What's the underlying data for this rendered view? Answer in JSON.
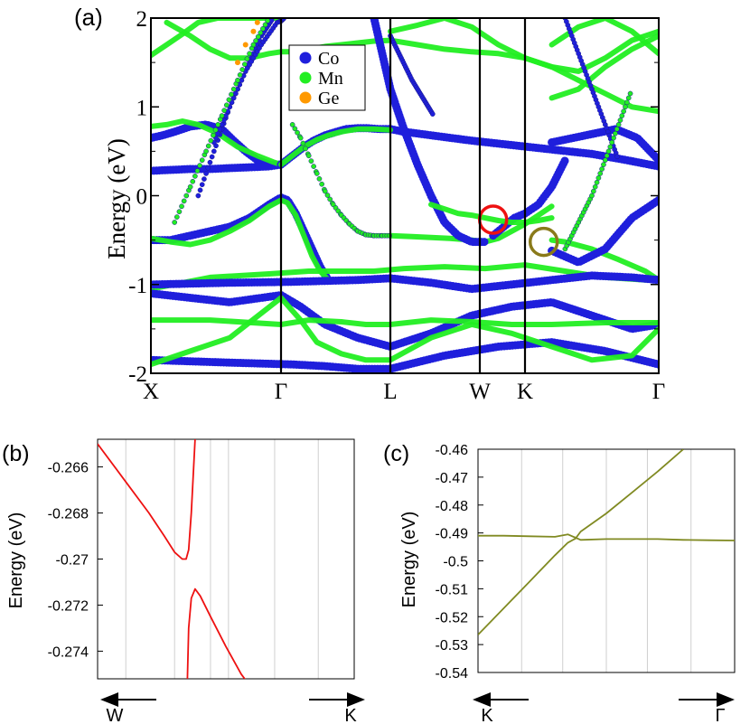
{
  "chart_data": [
    {
      "panel": "(a)",
      "type": "line",
      "ylabel": "Energy (eV)",
      "ylim": [
        -2,
        2
      ],
      "yticks": [
        "-2",
        "-1",
        "0",
        "1",
        "2"
      ],
      "xticks": [
        "X",
        "Γ",
        "L",
        "W",
        "K",
        "Γ"
      ],
      "legend_position": "top-center",
      "legend": [
        {
          "name": "Co",
          "color": "#1f1fdc"
        },
        {
          "name": "Mn",
          "color": "#22ee22"
        },
        {
          "name": "Ge",
          "color": "#ff9900"
        }
      ],
      "series": [
        {
          "color": "#1f1fdc",
          "x": [
            0,
            0.03,
            0.06,
            0.1,
            0.14,
            0.18,
            0.21,
            0.24,
            0.27,
            0.3,
            0.33
          ],
          "y": [
            0.65,
            0.68,
            0.72,
            0.78,
            0.8,
            0.75,
            0.62,
            0.5,
            0.4,
            0.35,
            0.35
          ]
        },
        {
          "color": "#1f1fdc",
          "x": [
            0,
            0.05,
            0.1,
            0.15,
            0.2,
            0.25,
            0.3,
            0.33
          ],
          "y": [
            0.28,
            0.29,
            0.3,
            0.3,
            0.31,
            0.32,
            0.33,
            0.35
          ]
        },
        {
          "color": "#22ee22",
          "x": [
            0,
            0.04,
            0.08,
            0.12,
            0.17,
            0.22,
            0.27,
            0.31,
            0.33
          ],
          "y": [
            0.78,
            0.8,
            0.84,
            0.8,
            0.7,
            0.55,
            0.45,
            0.38,
            0.35
          ]
        },
        {
          "color": "#1f1fdc",
          "x": [
            0.33,
            0.4,
            0.47,
            0.53,
            0.6,
            0.67,
            0.73,
            0.8,
            0.86,
            0.93,
            1.0,
            1.05,
            1.1,
            1.15,
            1.2,
            1.3,
            1.45,
            1.6,
            1.75,
            1.88,
            2.0
          ],
          "y": [
            0.35,
            0.45,
            0.55,
            0.62,
            0.68,
            0.72,
            0.75,
            0.76,
            0.76,
            0.75,
            0.75,
            0.72,
            0.7,
            0.68,
            0.66,
            0.62,
            0.57,
            0.52,
            0.47,
            0.4,
            0.33
          ]
        },
        {
          "color": "#22ee22",
          "x": [
            0.33,
            0.4,
            0.47,
            0.55,
            0.62,
            0.7,
            0.8,
            0.9,
            1.0
          ],
          "y": [
            0.35,
            0.45,
            0.55,
            0.63,
            0.68,
            0.72,
            0.75,
            0.75,
            0.74
          ]
        },
        {
          "color": "#1f1fdc",
          "x": [
            0,
            0.05,
            0.1,
            0.15,
            0.2,
            0.25,
            0.3,
            0.33,
            0.37,
            0.42,
            0.47,
            0.52,
            0.57,
            0.62
          ],
          "y": [
            -0.5,
            -0.5,
            -0.45,
            -0.4,
            -0.35,
            -0.25,
            -0.1,
            -0.02,
            -0.05,
            -0.2,
            -0.4,
            -0.6,
            -0.8,
            -0.95
          ]
        },
        {
          "color": "#22ee22",
          "x": [
            0,
            0.05,
            0.1,
            0.15,
            0.2,
            0.25,
            0.3,
            0.33,
            0.37,
            0.42,
            0.47,
            0.52,
            0.57,
            0.62
          ],
          "y": [
            -0.48,
            -0.52,
            -0.55,
            -0.5,
            -0.4,
            -0.28,
            -0.12,
            -0.05,
            -0.08,
            -0.22,
            -0.45,
            -0.68,
            -0.85,
            -0.95
          ]
        },
        {
          "color": "#22ee22",
          "x": [
            1.0,
            1.08,
            1.15,
            1.22,
            1.3,
            1.35,
            1.4,
            1.45,
            1.5,
            1.55,
            1.6
          ],
          "y": [
            -0.45,
            -0.46,
            -0.47,
            -0.48,
            -0.5,
            -0.52,
            -0.48,
            -0.4,
            -0.32,
            -0.22,
            -0.12
          ]
        },
        {
          "color": "#22ee22",
          "x": [
            1.6,
            1.65,
            1.75,
            1.85,
            1.95,
            2.0
          ],
          "y": [
            -0.5,
            -0.52,
            -0.6,
            -0.72,
            -0.85,
            -0.95
          ]
        },
        {
          "color": "#1f1fdc",
          "x": [
            1.6,
            1.7,
            1.8,
            1.9,
            2.0
          ],
          "y": [
            -0.62,
            -0.75,
            -0.6,
            -0.25,
            -0.05
          ]
        },
        {
          "color": "#22ee22",
          "x": [
            0,
            0.15,
            0.3,
            0.5,
            0.7,
            0.9,
            1.05,
            1.2,
            1.35,
            1.5,
            1.65,
            1.8,
            1.95,
            2.0
          ],
          "y": [
            -1.05,
            -0.92,
            -0.88,
            -0.85,
            -0.85,
            -0.85,
            -0.82,
            -0.8,
            -0.82,
            -0.78,
            -0.85,
            -0.92,
            -0.95,
            -0.95
          ]
        },
        {
          "color": "#1f1fdc",
          "x": [
            0,
            0.2,
            0.4,
            0.6,
            0.8,
            1.0,
            1.15,
            1.3,
            1.45,
            1.6,
            1.75,
            1.9,
            2.0
          ],
          "y": [
            -1.0,
            -0.98,
            -0.97,
            -0.96,
            -0.95,
            -0.93,
            -0.98,
            -1.05,
            -1.0,
            -0.95,
            -0.9,
            -0.92,
            -0.95
          ]
        },
        {
          "color": "#1f1fdc",
          "x": [
            0,
            0.1,
            0.2,
            0.33,
            0.45,
            0.6,
            0.8,
            1.0,
            1.15,
            1.3,
            1.45,
            1.6,
            1.75,
            1.9,
            2.0
          ],
          "y": [
            -1.1,
            -1.15,
            -1.2,
            -1.12,
            -1.25,
            -1.45,
            -1.6,
            -1.7,
            -1.55,
            -1.35,
            -1.25,
            -1.2,
            -1.35,
            -1.5,
            -1.45
          ]
        },
        {
          "color": "#22ee22",
          "x": [
            0,
            0.15,
            0.33,
            0.5,
            0.7,
            0.85,
            1.0,
            1.15,
            1.3,
            1.45,
            1.6,
            1.8,
            2.0
          ],
          "y": [
            -1.4,
            -1.4,
            -1.45,
            -1.4,
            -1.42,
            -1.45,
            -1.45,
            -1.4,
            -1.42,
            -1.45,
            -1.45,
            -1.43,
            -1.43
          ]
        },
        {
          "color": "#1f1fdc",
          "x": [
            0,
            0.2,
            0.4,
            0.6,
            0.8,
            1.0,
            1.2,
            1.4,
            1.6,
            1.8,
            2.0
          ],
          "y": [
            -1.85,
            -1.88,
            -1.9,
            -1.92,
            -1.95,
            -1.95,
            -1.8,
            -1.7,
            -1.65,
            -1.75,
            -1.9
          ]
        },
        {
          "color": "#22ee22",
          "x": [
            0,
            0.1,
            0.2,
            0.33,
            0.45,
            0.55,
            0.7,
            0.85,
            1.0,
            1.15,
            1.3,
            1.45,
            1.6,
            1.75,
            1.9,
            2.0
          ],
          "y": [
            -1.9,
            -1.75,
            -1.6,
            -1.15,
            -1.4,
            -1.65,
            -1.78,
            -1.85,
            -1.85,
            -1.6,
            -1.45,
            -1.55,
            -1.7,
            -1.85,
            -1.8,
            -1.5
          ]
        },
        {
          "color": "#22ee22",
          "x": [
            0.04,
            0.1,
            0.15,
            0.2,
            0.25,
            0.3,
            0.33,
            0.4,
            0.5,
            0.6,
            0.7,
            0.8,
            0.9,
            1.0,
            1.1,
            1.2,
            1.3,
            1.4,
            1.5,
            1.6,
            1.7,
            1.8,
            1.9,
            2.0
          ],
          "y": [
            1.95,
            1.8,
            1.65,
            1.55,
            1.55,
            1.6,
            1.62,
            1.62,
            1.65,
            1.68,
            1.7,
            1.72,
            1.74,
            1.75,
            1.7,
            1.65,
            1.62,
            1.6,
            1.55,
            1.45,
            1.4,
            1.55,
            1.75,
            1.85
          ]
        },
        {
          "color": "#22ee22",
          "x": [
            0,
            0.04,
            0.08,
            0.12,
            0.17,
            0.22,
            0.27,
            0.31,
            0.33
          ],
          "y": [
            1.58,
            1.7,
            1.82,
            1.95,
            2.0,
            2.0,
            2.0,
            2.0,
            2.0
          ]
        },
        {
          "color": "#22ee22",
          "x": [
            1.0,
            1.1,
            1.2,
            1.3,
            1.4,
            1.5,
            1.6,
            1.7,
            1.8,
            1.9,
            2.0
          ],
          "y": [
            1.85,
            1.92,
            2.0,
            1.9,
            1.7,
            1.55,
            1.45,
            1.3,
            1.15,
            1.0,
            0.95
          ]
        },
        {
          "color": "#1f1fdc",
          "x": [
            0.9,
            0.95,
            1.0,
            1.05,
            1.1,
            1.15,
            1.2,
            1.25,
            1.3,
            1.35
          ],
          "y": [
            2.0,
            1.6,
            1.2,
            0.75,
            0.35,
            0.0,
            -0.3,
            -0.45,
            -0.52,
            -0.52
          ]
        },
        {
          "color": "#1f1fdc",
          "x": [
            1.38,
            1.42,
            1.46,
            1.5,
            1.55,
            1.6,
            1.65
          ],
          "y": [
            -0.45,
            -0.35,
            -0.25,
            -0.2,
            -0.1,
            0.1,
            0.4
          ]
        },
        {
          "color": "#1f1fdc",
          "x": [
            1.6,
            1.68,
            1.76,
            1.84,
            1.92,
            2.0
          ],
          "y": [
            0.6,
            0.65,
            0.7,
            0.75,
            0.65,
            0.4
          ]
        },
        {
          "color": "#22ee22",
          "x": [
            1.15,
            1.2,
            1.25,
            1.3,
            1.35,
            1.4,
            1.45,
            1.5,
            1.55,
            1.6
          ],
          "y": [
            -0.1,
            -0.15,
            -0.2,
            -0.22,
            -0.25,
            -0.28,
            -0.3,
            -0.3,
            -0.28,
            -0.25
          ]
        },
        {
          "color": "#22ee22",
          "x": [
            1.6,
            1.7,
            1.8,
            1.9,
            2.0
          ],
          "y": [
            1.1,
            1.2,
            1.45,
            1.65,
            1.8
          ]
        },
        {
          "color": "#22ee22",
          "x": [
            1.6,
            1.7,
            1.8,
            1.9,
            2.0
          ],
          "y": [
            1.7,
            1.9,
            2.0,
            1.85,
            1.6
          ]
        }
      ],
      "dotted_bands": [
        {
          "color": "#1f1fdc",
          "x": [
            0.12,
            0.16,
            0.2,
            0.24,
            0.28,
            0.31
          ],
          "y": [
            0.0,
            0.5,
            1.0,
            1.4,
            1.8,
            2.0
          ]
        },
        {
          "color": "#1f1fdc",
          "x": [
            0.16,
            0.2,
            0.24,
            0.28,
            0.32,
            0.35
          ],
          "y": [
            0.6,
            1.0,
            1.4,
            1.7,
            1.95,
            2.0
          ]
        },
        {
          "color": "#22ee22",
          "x": [
            0.06,
            0.1,
            0.14,
            0.18,
            0.22,
            0.26,
            0.3
          ],
          "y": [
            -0.3,
            0.1,
            0.5,
            0.9,
            1.3,
            1.7,
            2.0
          ]
        },
        {
          "color": "#22ee22",
          "x": [
            0.4,
            0.45,
            0.5,
            0.55,
            0.6,
            0.65,
            0.7,
            0.75,
            0.8,
            0.85,
            0.9,
            0.95,
            1.0
          ],
          "y": [
            0.8,
            0.65,
            0.45,
            0.25,
            0.05,
            -0.1,
            -0.22,
            -0.32,
            -0.4,
            -0.44,
            -0.45,
            -0.45,
            -0.45
          ]
        },
        {
          "color": "#1f1fdc",
          "x": [
            1.0,
            1.04,
            1.08,
            1.12,
            1.16
          ],
          "y": [
            1.8,
            1.55,
            1.3,
            1.1,
            0.9
          ]
        },
        {
          "color": "#1f1fdc",
          "x": [
            1.65,
            1.7,
            1.75,
            1.8,
            1.85
          ],
          "y": [
            2.0,
            1.6,
            1.2,
            0.8,
            0.4
          ]
        },
        {
          "color": "#22ee22",
          "x": [
            1.65,
            1.7,
            1.75,
            1.8,
            1.85,
            1.9
          ],
          "y": [
            -0.6,
            -0.3,
            0.0,
            0.4,
            0.8,
            1.2
          ]
        }
      ],
      "ge_points": {
        "color": "#ff9900",
        "x": [
          0.22,
          0.24,
          0.26,
          0.27
        ],
        "y": [
          1.5,
          1.7,
          1.85,
          1.95
        ]
      },
      "markers": [
        {
          "name": "red-crossing-circle",
          "color": "#ee1111",
          "x": 1.38,
          "y": -0.27
        },
        {
          "name": "olive-crossing-circle",
          "color": "#8a7a1a",
          "x": 1.57,
          "y": -0.52
        }
      ]
    },
    {
      "panel": "(b)",
      "type": "line",
      "ylabel": "Energy (eV)",
      "ylim": [
        -0.2752,
        -0.2648
      ],
      "yticks": [
        "-0.266",
        "-0.268",
        "-0.27",
        "-0.272",
        "-0.274"
      ],
      "xlim": [
        0,
        1
      ],
      "xlabel_left": "W",
      "xlabel_right": "K",
      "color": "#ee1111",
      "series": [
        {
          "x": [
            0.0,
            0.1,
            0.2,
            0.26,
            0.3,
            0.33,
            0.345,
            0.355,
            0.365,
            0.38
          ],
          "y": [
            -0.265,
            -0.2665,
            -0.268,
            -0.269,
            -0.2697,
            -0.27,
            -0.27,
            -0.2696,
            -0.268,
            -0.2648
          ]
        },
        {
          "x": [
            0.35,
            0.355,
            0.365,
            0.38,
            0.4,
            0.44,
            0.5,
            0.56,
            0.58
          ],
          "y": [
            -0.2752,
            -0.273,
            -0.2717,
            -0.2713,
            -0.2716,
            -0.2725,
            -0.2738,
            -0.275,
            -0.2753
          ]
        }
      ]
    },
    {
      "panel": "(c)",
      "type": "line",
      "ylabel": "Energy (eV)",
      "ylim": [
        -0.54,
        -0.46
      ],
      "yticks": [
        "-0.46",
        "-0.47",
        "-0.48",
        "-0.49",
        "-0.5",
        "-0.51",
        "-0.52",
        "-0.53",
        "-0.54"
      ],
      "xlim": [
        0,
        1
      ],
      "xlabel_left": "K",
      "xlabel_right": "Γ",
      "color": "#808a22",
      "series": [
        {
          "x": [
            0.0,
            0.1,
            0.2,
            0.3,
            0.35,
            0.4,
            0.5,
            0.6,
            0.7,
            0.8,
            0.9,
            1.0
          ],
          "y": [
            -0.491,
            -0.491,
            -0.4912,
            -0.4914,
            -0.4905,
            -0.4925,
            -0.4922,
            -0.4922,
            -0.4922,
            -0.4925,
            -0.4926,
            -0.4927
          ]
        },
        {
          "x": [
            0.0,
            0.1,
            0.2,
            0.3,
            0.35,
            0.38,
            0.4,
            0.5,
            0.6,
            0.7,
            0.8
          ],
          "y": [
            -0.5265,
            -0.517,
            -0.5075,
            -0.498,
            -0.4935,
            -0.492,
            -0.4895,
            -0.483,
            -0.4755,
            -0.468,
            -0.46
          ]
        }
      ]
    }
  ],
  "labels": {
    "panel_a": "(a)",
    "panel_b": "(b)",
    "panel_c": "(c)",
    "ylabel": "Energy (eV)"
  }
}
